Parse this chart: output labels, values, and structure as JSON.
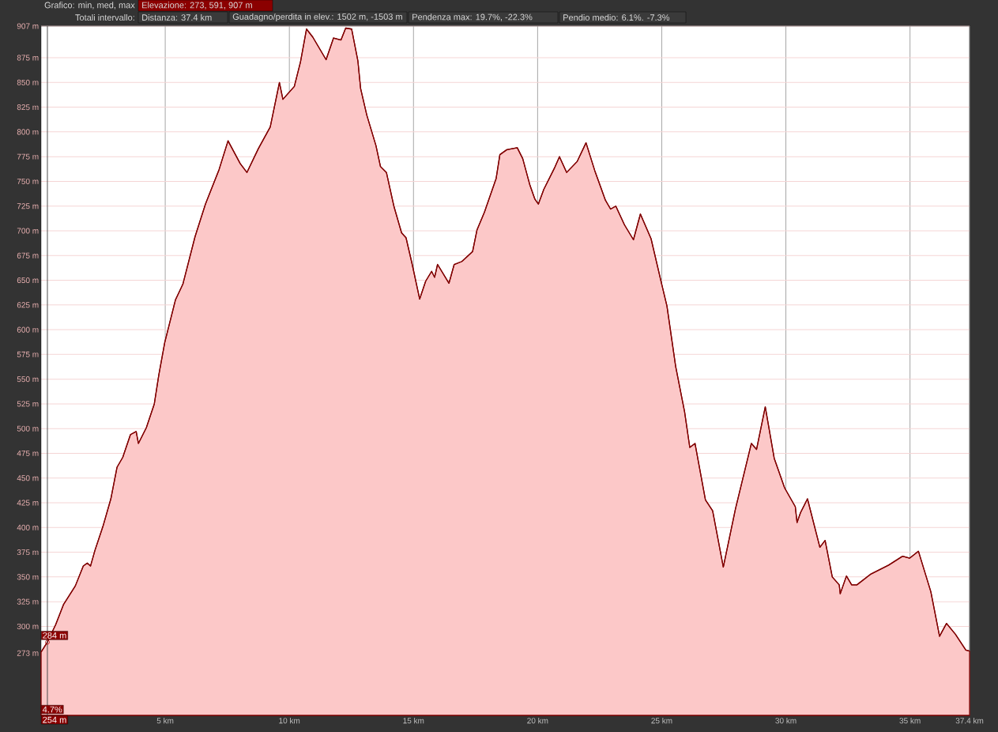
{
  "chart_data": {
    "type": "area",
    "color": "#800000",
    "x": [
      0,
      0.25,
      0.59,
      0.9,
      1.38,
      1.7,
      1.86,
      1.99,
      2.17,
      2.49,
      2.81,
      3.06,
      3.29,
      3.6,
      3.83,
      3.92,
      4.24,
      4.56,
      4.74,
      4.98,
      5.41,
      5.71,
      6.2,
      6.62,
      7.17,
      7.53,
      8.02,
      8.29,
      8.75,
      9.23,
      9.6,
      9.74,
      10.2,
      10.45,
      10.69,
      10.94,
      11.48,
      11.78,
      12.08,
      12.27,
      12.51,
      12.76,
      12.87,
      13.12,
      13.49,
      13.67,
      13.91,
      14.21,
      14.52,
      14.7,
      14.94,
      15.25,
      15.49,
      15.73,
      15.85,
      15.97,
      16.43,
      16.64,
      16.95,
      17.38,
      17.56,
      17.86,
      18.33,
      18.48,
      18.76,
      19.18,
      19.4,
      19.68,
      19.89,
      20.03,
      20.25,
      20.67,
      20.88,
      21.17,
      21.59,
      21.95,
      22.3,
      22.73,
      22.94,
      23.15,
      23.5,
      23.86,
      24.14,
      24.57,
      24.99,
      25.21,
      25.56,
      25.92,
      26.13,
      26.34,
      26.76,
      27.05,
      27.48,
      27.97,
      28.61,
      28.82,
      29.17,
      29.53,
      29.95,
      30.38,
      30.45,
      30.59,
      30.87,
      31.37,
      31.58,
      31.87,
      32.15,
      32.19,
      32.44,
      32.65,
      32.86,
      33.43,
      34.14,
      34.7,
      34.99,
      35.34,
      35.84,
      36.19,
      36.47,
      36.83,
      37.25,
      37.4
    ],
    "values": [
      274,
      284,
      302,
      322,
      341,
      361,
      364,
      361,
      377,
      401,
      429,
      461,
      471,
      494,
      497,
      485,
      501,
      525,
      554,
      587,
      630,
      646,
      694,
      727,
      762,
      791,
      768,
      759,
      783,
      805,
      850,
      833,
      846,
      871,
      904,
      896,
      873,
      895,
      893,
      905,
      904,
      872,
      844,
      817,
      786,
      765,
      759,
      725,
      698,
      693,
      667,
      631,
      649,
      659,
      653,
      666,
      647,
      666,
      669,
      679,
      701,
      719,
      753,
      777,
      782,
      784,
      773,
      747,
      732,
      727,
      742,
      763,
      775,
      759,
      770,
      789,
      761,
      731,
      722,
      725,
      706,
      691,
      717,
      692,
      647,
      624,
      563,
      517,
      481,
      485,
      428,
      417,
      360,
      419,
      485,
      479,
      522,
      470,
      440,
      421,
      405,
      415,
      429,
      380,
      387,
      350,
      342,
      333,
      351,
      342,
      342,
      353,
      362,
      371,
      369,
      376,
      335,
      290,
      303,
      292,
      276,
      275
    ],
    "xlim": [
      0,
      37.4
    ],
    "ylim": [
      210,
      907
    ],
    "xticks": [
      {
        "value": 5,
        "label": "5 km"
      },
      {
        "value": 10,
        "label": "10 km"
      },
      {
        "value": 15,
        "label": "15 km"
      },
      {
        "value": 20,
        "label": "20 km"
      },
      {
        "value": 25,
        "label": "25 km"
      },
      {
        "value": 30,
        "label": "30 km"
      },
      {
        "value": 35,
        "label": "35 km"
      },
      {
        "value": 37.4,
        "label": "37.4 km"
      }
    ],
    "yticks": [
      {
        "value": 273,
        "label": "273 m"
      },
      {
        "value": 300,
        "label": "300 m"
      },
      {
        "value": 325,
        "label": "325 m"
      },
      {
        "value": 350,
        "label": "350 m"
      },
      {
        "value": 375,
        "label": "375 m"
      },
      {
        "value": 400,
        "label": "400 m"
      },
      {
        "value": 425,
        "label": "425 m"
      },
      {
        "value": 450,
        "label": "450 m"
      },
      {
        "value": 475,
        "label": "475 m"
      },
      {
        "value": 500,
        "label": "500 m"
      },
      {
        "value": 525,
        "label": "525 m"
      },
      {
        "value": 550,
        "label": "550 m"
      },
      {
        "value": 575,
        "label": "575 m"
      },
      {
        "value": 600,
        "label": "600 m"
      },
      {
        "value": 625,
        "label": "625 m"
      },
      {
        "value": 650,
        "label": "650 m"
      },
      {
        "value": 675,
        "label": "675 m"
      },
      {
        "value": 700,
        "label": "700 m"
      },
      {
        "value": 725,
        "label": "725 m"
      },
      {
        "value": 750,
        "label": "750 m"
      },
      {
        "value": 775,
        "label": "775 m"
      },
      {
        "value": 800,
        "label": "800 m"
      },
      {
        "value": 825,
        "label": "825 m"
      },
      {
        "value": 850,
        "label": "850 m"
      },
      {
        "value": 875,
        "label": "875 m"
      },
      {
        "value": 907,
        "label": "907 m"
      }
    ],
    "grid": true,
    "ref_lines": [
      {
        "axis": "x",
        "value": 0.254,
        "label": "254 m"
      }
    ],
    "annotations": [
      "Grafico: min, med, max",
      "Elevazione: 273, 591, 907 m",
      "Totali intervallo:",
      "Distanza: 37.4 km",
      "Guadagno/perdita in elev.: 1502 m, -1503 m",
      "Pendenza max: 19.7%, -22.3%",
      "Pendio medio: 6.1%. -7.3%",
      "4.7%",
      {
        "text": "284 m",
        "x": 0.254,
        "y": 284
      }
    ]
  }
}
